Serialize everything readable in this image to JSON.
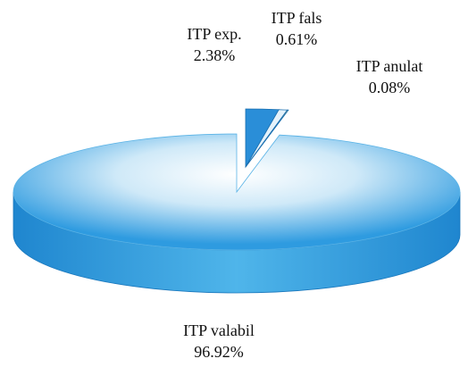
{
  "chart_data": {
    "type": "pie",
    "categories": [
      "ITP exp.",
      "ITP fals",
      "ITP anulat",
      "ITP valabil"
    ],
    "values": [
      2.38,
      0.61,
      0.08,
      96.92
    ],
    "value_labels": [
      "2.38%",
      "0.61%",
      "0.08%",
      "96.92%"
    ],
    "colors": [
      "#2a8ed8",
      "#e4f2fb",
      "#e3c35a",
      "#3aa6e2"
    ]
  }
}
